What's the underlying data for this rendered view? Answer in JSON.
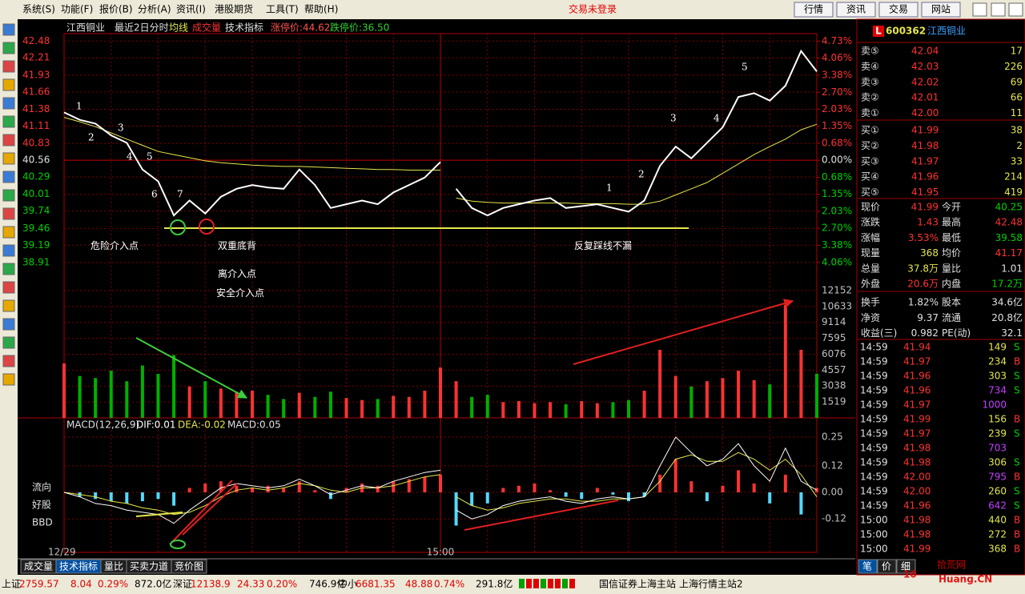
{
  "menu": [
    "系统(S)",
    "功能(F)",
    "报价(B)",
    "分析(A)",
    "资讯(I)",
    "港股期货",
    "工具(T)",
    "帮助(H)"
  ],
  "trade_status": "交易未登录",
  "nav_buttons": [
    "行情",
    "资讯",
    "交易",
    "网站"
  ],
  "chart_data": {
    "type": "line",
    "stock_name": "江西铜业",
    "period": "最近2日分时",
    "indicator_label": "技术指标",
    "limit_up": "涨停价:44.62",
    "limit_down": "跌停价:36.50",
    "x": [
      0,
      10,
      20,
      30,
      40,
      50,
      60,
      70,
      80,
      90,
      100,
      110,
      120,
      130,
      140,
      150,
      160,
      170,
      180,
      190,
      200,
      210,
      220,
      230,
      240,
      245,
      250,
      260,
      270,
      280,
      290,
      300,
      310,
      320,
      330,
      340,
      350,
      360,
      370,
      380,
      390,
      400,
      410,
      420,
      430,
      440,
      450,
      460,
      470,
      480
    ],
    "xlim": [
      0,
      480
    ],
    "xticks": [
      {
        "value": 0,
        "label": "12/29"
      },
      {
        "value": 240,
        "label": "15:00"
      }
    ],
    "ylim": [
      38.6,
      42.6
    ],
    "yticks": [
      42.48,
      42.21,
      41.93,
      41.66,
      41.38,
      41.11,
      40.83,
      40.56,
      40.29,
      40.01,
      39.74,
      39.46,
      39.19,
      38.91
    ],
    "y2lim": [
      -4.83,
      5.03
    ],
    "y2ticks": [
      {
        "value": 4.73,
        "label": "4.73%"
      },
      {
        "value": 4.06,
        "label": "4.06%"
      },
      {
        "value": 3.38,
        "label": "3.38%"
      },
      {
        "value": 2.7,
        "label": "2.70%"
      },
      {
        "value": 2.03,
        "label": "2.03%"
      },
      {
        "value": 1.35,
        "label": "1.35%"
      },
      {
        "value": 0.68,
        "label": "0.68%"
      },
      {
        "value": 0,
        "label": "0.00%"
      },
      {
        "value": -0.68,
        "label": "0.68%"
      },
      {
        "value": -1.35,
        "label": "1.35%"
      },
      {
        "value": -2.03,
        "label": "2.03%"
      },
      {
        "value": -2.7,
        "label": "2.70%"
      },
      {
        "value": -3.38,
        "label": "3.38%"
      },
      {
        "value": -4.06,
        "label": "4.06%"
      }
    ],
    "series": [
      {
        "color": "#ffffff",
        "values": [
          41.33,
          41.21,
          41.15,
          40.96,
          40.84,
          40.41,
          40.22,
          39.67,
          39.91,
          39.7,
          39.97,
          40.1,
          40.16,
          40.12,
          40.1,
          40.41,
          40.16,
          39.79,
          39.85,
          39.91,
          39.85,
          40.04,
          40.16,
          40.28,
          40.53,
          null,
          40.1,
          39.79,
          39.67,
          39.79,
          39.85,
          39.91,
          39.95,
          39.79,
          39.82,
          39.85,
          39.79,
          39.73,
          39.91,
          40.47,
          40.78,
          40.59,
          40.84,
          41.09,
          41.58,
          41.64,
          41.52,
          41.76,
          42.32,
          41.99
        ]
      },
      {
        "name": "均线",
        "color": "#e6e64c",
        "values": [
          41.25,
          41.18,
          41.1,
          41.0,
          40.9,
          40.8,
          40.7,
          40.65,
          40.6,
          40.55,
          40.52,
          40.5,
          40.48,
          40.47,
          40.46,
          40.46,
          40.45,
          40.44,
          40.43,
          40.42,
          40.41,
          40.41,
          40.4,
          40.4,
          40.4,
          null,
          39.95,
          39.9,
          39.88,
          39.87,
          39.87,
          39.87,
          39.87,
          39.87,
          39.86,
          39.86,
          39.86,
          39.85,
          39.85,
          39.9,
          40.0,
          40.1,
          40.2,
          40.35,
          40.5,
          40.65,
          40.78,
          40.9,
          41.05,
          41.14
        ]
      }
    ],
    "volume": {
      "name": "成交量",
      "up_color": "#ff3232",
      "down_color": "#00b000",
      "ylim": [
        0,
        12760
      ],
      "yticks": [
        12152,
        10633,
        9114,
        7595,
        6076,
        4557,
        3038,
        1519
      ],
      "values": [
        5200,
        4000,
        3800,
        4500,
        3500,
        5000,
        4200,
        6000,
        3000,
        3500,
        2800,
        2500,
        2600,
        2200,
        1800,
        2400,
        2000,
        2500,
        1900,
        1700,
        1800,
        2100,
        2000,
        2600,
        4800,
        null,
        3500,
        2000,
        2200,
        1500,
        1600,
        1400,
        1500,
        1300,
        1600,
        1400,
        1500,
        1700,
        2600,
        6500,
        4000,
        3000,
        3500,
        3800,
        4500,
        3600,
        3200,
        10800,
        6500,
        4200
      ]
    },
    "macd": {
      "title": "MACD(12,26,9)",
      "dif_label": "DIF:0.01",
      "dea_label": "DEA:-0.02",
      "macd_label": "MACD:0.05",
      "up_color": "#ff3232",
      "down_color": "#54d8ff",
      "dif_color": "#ffffff",
      "dea_color": "#e6e64c",
      "ylim": [
        -0.235,
        0.333
      ],
      "yticks": [
        0.25,
        0.12,
        {
          "value": 0,
          "label": "0.00"
        },
        -0.12
      ],
      "bars": [
        0,
        -0.02,
        -0.03,
        -0.04,
        -0.05,
        -0.04,
        -0.03,
        -0.06,
        0.02,
        0.04,
        0.05,
        0.03,
        0.02,
        0.03,
        0.02,
        0.05,
        0.01,
        -0.03,
        0.02,
        0.04,
        0.03,
        0.05,
        0.06,
        0.07,
        0.08,
        null,
        -0.15,
        -0.06,
        -0.05,
        0.02,
        0.03,
        0.04,
        0.01,
        -0.02,
        -0.03,
        0.02,
        -0.01,
        -0.04,
        -0.02,
        0.08,
        0.15,
        0.05,
        -0.04,
        0.03,
        0.1,
        0.04,
        -0.05,
        0.08,
        -0.1,
        0.02
      ],
      "dif": [
        0,
        -0.02,
        -0.05,
        -0.06,
        -0.08,
        -0.09,
        -0.1,
        -0.14,
        -0.08,
        -0.03,
        0.02,
        0.04,
        0.03,
        0.02,
        0.03,
        0.06,
        0.03,
        -0.01,
        0.01,
        0.03,
        0.02,
        0.05,
        0.07,
        0.09,
        0.1,
        null,
        -0.08,
        -0.12,
        -0.1,
        -0.06,
        -0.04,
        -0.03,
        -0.02,
        -0.04,
        -0.05,
        -0.03,
        -0.02,
        -0.03,
        -0.02,
        0.12,
        0.25,
        0.18,
        0.12,
        0.15,
        0.22,
        0.12,
        0.05,
        0.2,
        0.05,
        0.01
      ],
      "dea": [
        0,
        -0.01,
        -0.02,
        -0.04,
        -0.05,
        -0.07,
        -0.08,
        -0.1,
        -0.09,
        -0.06,
        -0.02,
        0.01,
        0.02,
        0.01,
        0.02,
        0.04,
        0.03,
        0.01,
        0,
        0.02,
        0.02,
        0.03,
        0.05,
        0.07,
        0.08,
        null,
        -0.02,
        -0.06,
        -0.08,
        -0.07,
        -0.05,
        -0.04,
        -0.03,
        -0.03,
        -0.04,
        -0.04,
        -0.03,
        -0.03,
        -0.02,
        0.05,
        0.15,
        0.17,
        0.14,
        0.14,
        0.18,
        0.15,
        0.1,
        0.15,
        0.08,
        -0.02
      ]
    },
    "annotations": [
      "1",
      "2",
      "3",
      "4",
      "5",
      "6",
      "7",
      "危险介入点",
      "双重底背",
      "离介入点",
      "安全介入点",
      "1",
      "2",
      "3",
      "4",
      "5",
      "反复踩线不漏"
    ]
  },
  "side_labels": [
    "流向",
    "好股",
    "BBD"
  ],
  "tabs": [
    "成交量",
    "技术指标",
    "量比",
    "买卖力道",
    "竞价图"
  ],
  "quote": {
    "badge": "L",
    "code": "600362",
    "name": "江西铜业",
    "book": [
      [
        "卖⑤",
        "42.04",
        "17"
      ],
      [
        "卖④",
        "42.03",
        "226"
      ],
      [
        "卖③",
        "42.02",
        "69"
      ],
      [
        "卖②",
        "42.01",
        "66"
      ],
      [
        "卖①",
        "42.00",
        "11"
      ],
      [
        "买①",
        "41.99",
        "38"
      ],
      [
        "买②",
        "41.98",
        "2"
      ],
      [
        "买③",
        "41.97",
        "33"
      ],
      [
        "买④",
        "41.96",
        "214"
      ],
      [
        "买⑤",
        "41.95",
        "419"
      ]
    ],
    "stats": [
      [
        "现价",
        "41.99",
        "今开",
        "40.25"
      ],
      [
        "涨跌",
        "1.43",
        "最高",
        "42.48"
      ],
      [
        "涨幅",
        "3.53%",
        "最低",
        "39.58"
      ],
      [
        "现量",
        "368",
        "均价",
        "41.17"
      ],
      [
        "总量",
        "37.8万",
        "量比",
        "1.01"
      ],
      [
        "外盘",
        "20.6万",
        "内盘",
        "17.2万"
      ],
      [
        "换手",
        "1.82%",
        "股本",
        "34.6亿"
      ],
      [
        "净资",
        "9.37",
        "流通",
        "20.8亿"
      ],
      [
        "收益(三)",
        "0.982",
        "PE(动)",
        "32.1"
      ]
    ],
    "ticks": [
      [
        "14:59",
        "41.94",
        "149",
        "S"
      ],
      [
        "14:59",
        "41.97",
        "234",
        "B"
      ],
      [
        "14:59",
        "41.96",
        "303",
        "S"
      ],
      [
        "14:59",
        "41.96",
        "734",
        "S"
      ],
      [
        "14:59",
        "41.97",
        "1000"
      ],
      [
        "14:59",
        "41.99",
        "156",
        "B"
      ],
      [
        "14:59",
        "41.97",
        "239",
        "S"
      ],
      [
        "14:59",
        "41.98",
        "703"
      ],
      [
        "14:59",
        "41.98",
        "306",
        "S"
      ],
      [
        "14:59",
        "42.00",
        "795",
        "B"
      ],
      [
        "14:59",
        "42.00",
        "260",
        "S"
      ],
      [
        "14:59",
        "41.96",
        "642",
        "S"
      ],
      [
        "15:00",
        "41.98",
        "440",
        "B"
      ],
      [
        "15:00",
        "41.98",
        "272",
        "B"
      ],
      [
        "15:00",
        "41.99",
        "368",
        "B"
      ]
    ],
    "tabs": [
      "笔",
      "价",
      "细"
    ]
  },
  "status_bar": [
    "上证",
    "2759.57",
    "8.04",
    "0.29%",
    "872.0亿",
    "深证",
    "12138.9",
    "24.33",
    "0.20%",
    "746.9亿",
    "中小",
    "6681.35",
    "48.88",
    "0.74%",
    "291.8亿",
    "国信证券上海主站",
    "上海行情主站2"
  ],
  "watermark": [
    "10",
    "拾荒网",
    "Huang.CN"
  ]
}
